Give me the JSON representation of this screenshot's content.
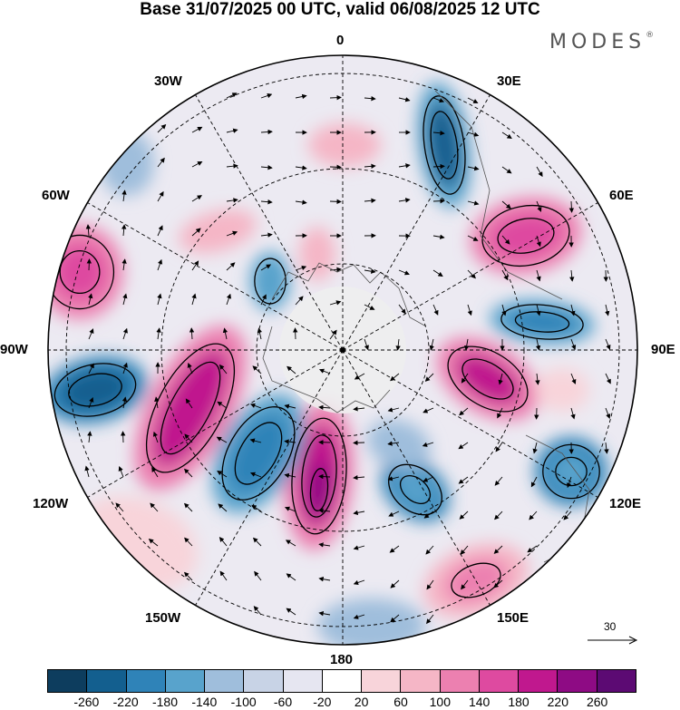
{
  "header": {
    "title": "Base 31/07/2025 00 UTC, valid 06/08/2025 12 UTC",
    "brand": "MODES",
    "brand_mark": "®"
  },
  "map": {
    "projection": "polar-stereographic north",
    "lon_labels": {
      "n": "0",
      "e30": "30E",
      "e60": "60E",
      "e90": "90E",
      "e120": "120E",
      "e150": "150E",
      "s": "180",
      "w150": "150W",
      "w120": "120W",
      "w90": "90W",
      "w60": "60W",
      "w30": "30W"
    },
    "reference_vector": "30"
  },
  "colorbar": {
    "colors": [
      "#0d3d5e",
      "#135f8f",
      "#2f83b8",
      "#58a3cc",
      "#9fbedc",
      "#c8d3e6",
      "#e6e6f1",
      "#ffffff",
      "#f8d4da",
      "#f5b6c6",
      "#ec80b0",
      "#de4aa0",
      "#c0188e",
      "#8e0b84",
      "#5c0a73"
    ],
    "labels": [
      "-260",
      "-220",
      "-180",
      "-140",
      "-100",
      "-60",
      "-20",
      "20",
      "60",
      "100",
      "140",
      "180",
      "220",
      "260"
    ]
  }
}
